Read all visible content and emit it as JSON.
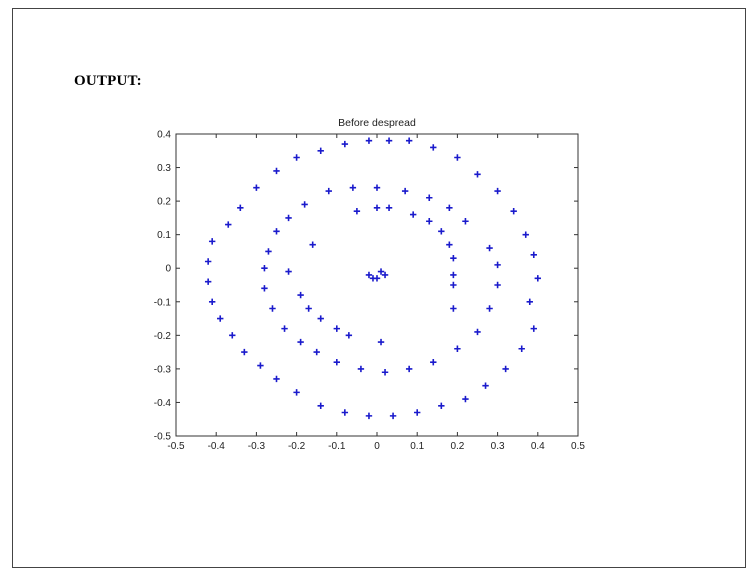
{
  "document": {
    "heading": "OUTPUT:"
  },
  "colors": {
    "marker": "#1a1acc",
    "axis": "#333333",
    "background": "#ffffff"
  },
  "chart_data": {
    "type": "scatter",
    "title": "Before despread",
    "xlabel": "",
    "ylabel": "",
    "xlim": [
      -0.5,
      0.5
    ],
    "ylim": [
      -0.5,
      0.4
    ],
    "xticks": [
      -0.5,
      -0.4,
      -0.3,
      -0.2,
      -0.1,
      0,
      0.1,
      0.2,
      0.3,
      0.4,
      0.5
    ],
    "xtick_labels": [
      "-0.5",
      "-0.4",
      "-0.3",
      "-0.2",
      "-0.1",
      "0",
      "0.1",
      "0.2",
      "0.3",
      "0.4",
      "0.5"
    ],
    "yticks": [
      -0.5,
      -0.4,
      -0.3,
      -0.2,
      -0.1,
      0,
      0.1,
      0.2,
      0.3,
      0.4
    ],
    "ytick_labels": [
      "-0.5",
      "-0.4",
      "-0.3",
      "-0.2",
      "-0.1",
      "0",
      "0.1",
      "0.2",
      "0.3",
      "0.4"
    ],
    "grid": false,
    "legend": "none",
    "marker": "+",
    "series": [
      {
        "points": [
          [
            -0.02,
            0.38
          ],
          [
            -0.08,
            0.37
          ],
          [
            -0.14,
            0.35
          ],
          [
            -0.2,
            0.33
          ],
          [
            -0.25,
            0.29
          ],
          [
            -0.3,
            0.24
          ],
          [
            -0.34,
            0.18
          ],
          [
            -0.37,
            0.13
          ],
          [
            -0.41,
            0.08
          ],
          [
            -0.42,
            0.02
          ],
          [
            -0.42,
            -0.04
          ],
          [
            -0.41,
            -0.1
          ],
          [
            -0.39,
            -0.15
          ],
          [
            -0.36,
            -0.2
          ],
          [
            -0.33,
            -0.25
          ],
          [
            -0.29,
            -0.29
          ],
          [
            -0.25,
            -0.33
          ],
          [
            -0.2,
            -0.37
          ],
          [
            -0.14,
            -0.41
          ],
          [
            -0.08,
            -0.43
          ],
          [
            -0.02,
            -0.44
          ],
          [
            0.04,
            -0.44
          ],
          [
            0.1,
            -0.43
          ],
          [
            0.16,
            -0.41
          ],
          [
            0.22,
            -0.39
          ],
          [
            0.27,
            -0.35
          ],
          [
            0.32,
            -0.3
          ],
          [
            0.36,
            -0.24
          ],
          [
            0.39,
            -0.18
          ],
          [
            0.38,
            -0.1
          ],
          [
            0.4,
            -0.03
          ],
          [
            0.39,
            0.04
          ],
          [
            0.37,
            0.1
          ],
          [
            0.34,
            0.17
          ],
          [
            0.3,
            0.23
          ],
          [
            0.25,
            0.28
          ],
          [
            0.2,
            0.33
          ],
          [
            0.14,
            0.36
          ],
          [
            0.08,
            0.38
          ],
          [
            0.03,
            0.38
          ],
          [
            -0.25,
            0.11
          ],
          [
            -0.27,
            0.05
          ],
          [
            -0.28,
            0.0
          ],
          [
            -0.28,
            -0.06
          ],
          [
            -0.26,
            -0.12
          ],
          [
            -0.23,
            -0.18
          ],
          [
            -0.19,
            -0.22
          ],
          [
            -0.15,
            -0.25
          ],
          [
            -0.1,
            -0.28
          ],
          [
            -0.04,
            -0.3
          ],
          [
            0.02,
            -0.31
          ],
          [
            0.08,
            -0.3
          ],
          [
            0.14,
            -0.28
          ],
          [
            0.2,
            -0.24
          ],
          [
            0.25,
            -0.19
          ],
          [
            0.28,
            -0.12
          ],
          [
            0.3,
            -0.05
          ],
          [
            0.3,
            0.01
          ],
          [
            0.28,
            0.06
          ],
          [
            0.22,
            0.14
          ],
          [
            0.18,
            0.18
          ],
          [
            0.13,
            0.21
          ],
          [
            0.07,
            0.23
          ],
          [
            0.0,
            0.24
          ],
          [
            -0.06,
            0.24
          ],
          [
            -0.12,
            0.23
          ],
          [
            -0.18,
            0.19
          ],
          [
            -0.22,
            0.15
          ],
          [
            -0.05,
            0.17
          ],
          [
            0.0,
            0.18
          ],
          [
            0.03,
            0.18
          ],
          [
            0.09,
            0.16
          ],
          [
            0.13,
            0.14
          ],
          [
            0.16,
            0.11
          ],
          [
            0.18,
            0.07
          ],
          [
            0.19,
            0.03
          ],
          [
            0.19,
            -0.02
          ],
          [
            0.19,
            -0.05
          ],
          [
            -0.22,
            -0.01
          ],
          [
            -0.19,
            -0.08
          ],
          [
            -0.17,
            -0.12
          ],
          [
            -0.14,
            -0.15
          ],
          [
            -0.1,
            -0.18
          ],
          [
            -0.07,
            -0.2
          ],
          [
            0.01,
            -0.22
          ],
          [
            -0.16,
            0.07
          ],
          [
            0.19,
            -0.12
          ],
          [
            -0.02,
            -0.02
          ],
          [
            0.0,
            -0.03
          ],
          [
            0.02,
            -0.02
          ],
          [
            0.01,
            -0.01
          ],
          [
            -0.01,
            -0.03
          ]
        ]
      }
    ]
  }
}
